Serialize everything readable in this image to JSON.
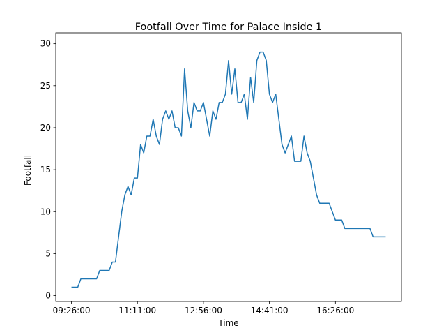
{
  "chart_data": {
    "type": "line",
    "title": "Footfall Over Time for Palace Inside 1",
    "x_label": "Time",
    "y_label": "Footfall",
    "x": [
      "09:26:00",
      "09:31:00",
      "09:36:00",
      "09:41:00",
      "09:46:00",
      "09:51:00",
      "09:56:00",
      "10:01:00",
      "10:06:00",
      "10:11:00",
      "10:16:00",
      "10:21:00",
      "10:26:00",
      "10:31:00",
      "10:36:00",
      "10:41:00",
      "10:46:00",
      "10:51:00",
      "10:56:00",
      "11:01:00",
      "11:06:00",
      "11:11:00",
      "11:16:00",
      "11:21:00",
      "11:26:00",
      "11:31:00",
      "11:36:00",
      "11:41:00",
      "11:46:00",
      "11:51:00",
      "11:56:00",
      "12:01:00",
      "12:06:00",
      "12:11:00",
      "12:16:00",
      "12:21:00",
      "12:26:00",
      "12:31:00",
      "12:36:00",
      "12:41:00",
      "12:46:00",
      "12:51:00",
      "12:56:00",
      "13:01:00",
      "13:06:00",
      "13:11:00",
      "13:16:00",
      "13:21:00",
      "13:26:00",
      "13:31:00",
      "13:36:00",
      "13:41:00",
      "13:46:00",
      "13:51:00",
      "13:56:00",
      "14:01:00",
      "14:06:00",
      "14:11:00",
      "14:16:00",
      "14:21:00",
      "14:26:00",
      "14:31:00",
      "14:36:00",
      "14:41:00",
      "14:46:00",
      "14:51:00",
      "14:56:00",
      "15:01:00",
      "15:06:00",
      "15:11:00",
      "15:16:00",
      "15:21:00",
      "15:26:00",
      "15:31:00",
      "15:36:00",
      "15:41:00",
      "15:46:00",
      "15:51:00",
      "15:56:00",
      "16:01:00",
      "16:06:00",
      "16:11:00",
      "16:16:00",
      "16:21:00",
      "16:26:00",
      "16:31:00",
      "16:36:00",
      "16:41:00",
      "16:46:00",
      "16:51:00",
      "16:56:00",
      "17:01:00",
      "17:06:00",
      "17:11:00",
      "17:16:00",
      "17:21:00",
      "17:26:00",
      "17:31:00",
      "17:36:00",
      "17:41:00",
      "17:46:00"
    ],
    "series": [
      {
        "color": "#1f77b4",
        "values": [
          1,
          1,
          1,
          2,
          2,
          2,
          2,
          2,
          2,
          3,
          3,
          3,
          3,
          4,
          4,
          7,
          10,
          12,
          13,
          12,
          14,
          14,
          18,
          17,
          19,
          19,
          21,
          19,
          18,
          21,
          22,
          21,
          22,
          20,
          20,
          19,
          27,
          22,
          20,
          23,
          22,
          22,
          23,
          21,
          19,
          22,
          21,
          23,
          23,
          24,
          28,
          24,
          27,
          23,
          23,
          24,
          21,
          26,
          23,
          28,
          29,
          29,
          28,
          24,
          23,
          24,
          21,
          18,
          17,
          18,
          19,
          16,
          16,
          16,
          19,
          17,
          16,
          14,
          12,
          11,
          11,
          11,
          11,
          10,
          9,
          9,
          9,
          8,
          8,
          8,
          8,
          8,
          8,
          8,
          8,
          8,
          7,
          7,
          7,
          7,
          7
        ]
      }
    ],
    "xlim": [
      "09:01:00",
      "18:11:00"
    ],
    "xticks": [
      "09:26:00",
      "11:11:00",
      "12:56:00",
      "14:41:00",
      "16:26:00"
    ],
    "ylim": [
      -0.7,
      31.3
    ],
    "yticks": [
      0,
      5,
      10,
      15,
      20,
      25,
      30
    ],
    "grid": false
  }
}
